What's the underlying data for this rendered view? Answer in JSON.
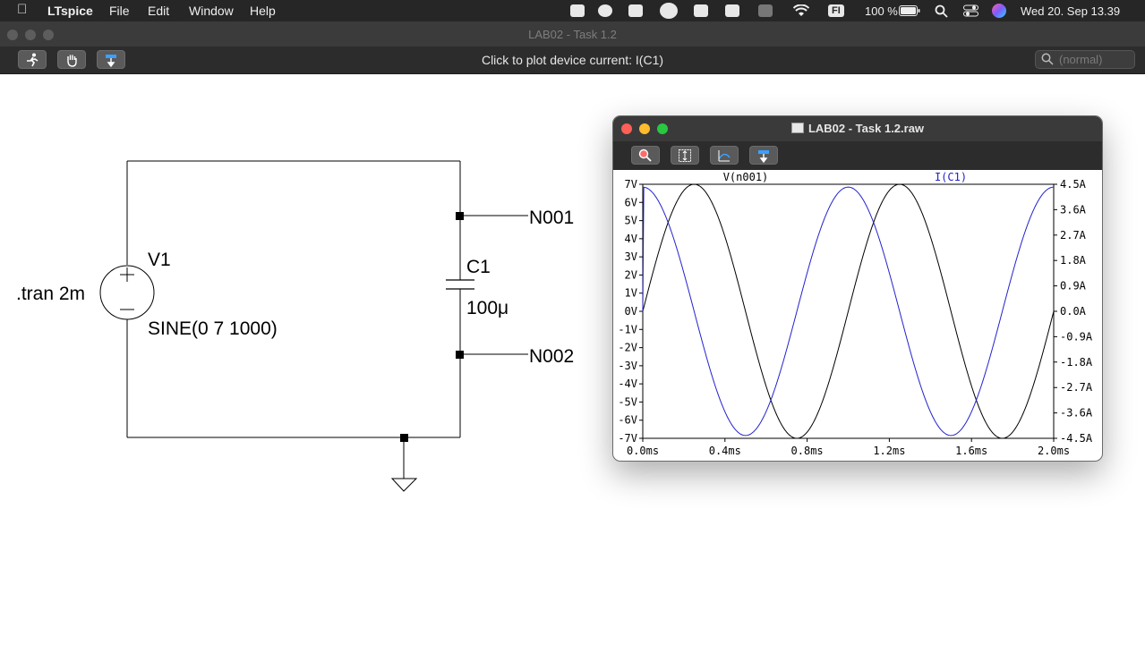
{
  "menubar": {
    "app_name": "LTspice",
    "menus": [
      "File",
      "Edit",
      "Window",
      "Help"
    ],
    "lang_badge": "FI",
    "battery": "100 %",
    "datetime": "Wed 20. Sep  13.39"
  },
  "window": {
    "title": "LAB02 - Task 1.2",
    "status_message": "Click to plot device current: I(C1)",
    "search_placeholder": "(normal)"
  },
  "schematic": {
    "directive": ".tran 2m",
    "source_name": "V1",
    "source_value": "SINE(0 7 1000)",
    "cap_name": "C1",
    "cap_value": "100μ",
    "net1": "N001",
    "net2": "N002"
  },
  "waveform_window": {
    "title": "LAB02 - Task 1.2.raw"
  },
  "chart_data": {
    "type": "line",
    "x_label_ticks": [
      "0.0ms",
      "0.4ms",
      "0.8ms",
      "1.2ms",
      "1.6ms",
      "2.0ms"
    ],
    "xlim": [
      0,
      2.0
    ],
    "left_ticks": [
      "7V",
      "6V",
      "5V",
      "4V",
      "3V",
      "2V",
      "1V",
      "0V",
      "-1V",
      "-2V",
      "-3V",
      "-4V",
      "-5V",
      "-6V",
      "-7V"
    ],
    "ylim_left": [
      -7,
      7
    ],
    "right_ticks": [
      "4.5A",
      "3.6A",
      "2.7A",
      "1.8A",
      "0.9A",
      "0.0A",
      "-0.9A",
      "-1.8A",
      "-2.7A",
      "-3.6A",
      "-4.5A"
    ],
    "ylim_right": [
      -4.5,
      4.5
    ],
    "series": [
      {
        "name": "V(n001)",
        "color": "#000000",
        "axis": "left",
        "amplitude": 7,
        "frequency_hz": 1000,
        "phase": "sine"
      },
      {
        "name": "I(C1)",
        "color": "#2222cc",
        "axis": "right",
        "amplitude": 4.4,
        "frequency_hz": 1000,
        "phase": "cosine"
      }
    ]
  }
}
